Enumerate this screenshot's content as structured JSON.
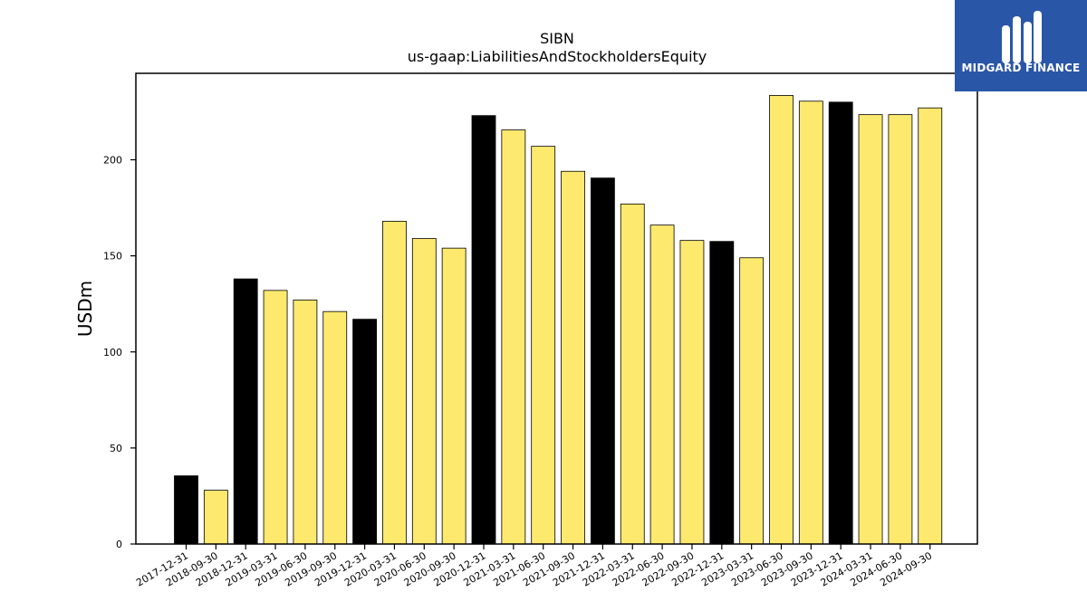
{
  "logo": {
    "text": "MIDGARD FINANCE",
    "background": "#2a56a8"
  },
  "chart_data": {
    "type": "bar",
    "title": "SIBN",
    "subtitle": "us-gaap:LiabilitiesAndStockholdersEquity",
    "xlabel": "",
    "ylabel": "USDm",
    "ylim": [
      0,
      245
    ],
    "yticks": [
      0,
      50,
      100,
      150,
      200
    ],
    "grid": false,
    "colors": {
      "annual": "#000000",
      "quarterly": "#fde96e",
      "edge": "#000000"
    },
    "categories": [
      "2017-12-31",
      "2018-09-30",
      "2018-12-31",
      "2019-03-31",
      "2019-06-30",
      "2019-09-30",
      "2019-12-31",
      "2020-03-31",
      "2020-06-30",
      "2020-09-30",
      "2020-12-31",
      "2021-03-31",
      "2021-06-30",
      "2021-09-30",
      "2021-12-31",
      "2022-03-31",
      "2022-06-30",
      "2022-09-30",
      "2022-12-31",
      "2023-03-31",
      "2023-06-30",
      "2023-09-30",
      "2023-12-31",
      "2024-03-31",
      "2024-06-30",
      "2024-09-30"
    ],
    "values": [
      35.5,
      28,
      138,
      132,
      127,
      121,
      117,
      168,
      159,
      154,
      223,
      215.5,
      207,
      194,
      190.5,
      177,
      166,
      158,
      157.5,
      149,
      233.5,
      230.5,
      230,
      223.5,
      223.5,
      227
    ],
    "period": [
      "annual",
      "quarterly",
      "annual",
      "quarterly",
      "quarterly",
      "quarterly",
      "annual",
      "quarterly",
      "quarterly",
      "quarterly",
      "annual",
      "quarterly",
      "quarterly",
      "quarterly",
      "annual",
      "quarterly",
      "quarterly",
      "quarterly",
      "annual",
      "quarterly",
      "quarterly",
      "quarterly",
      "annual",
      "quarterly",
      "quarterly",
      "quarterly"
    ]
  }
}
